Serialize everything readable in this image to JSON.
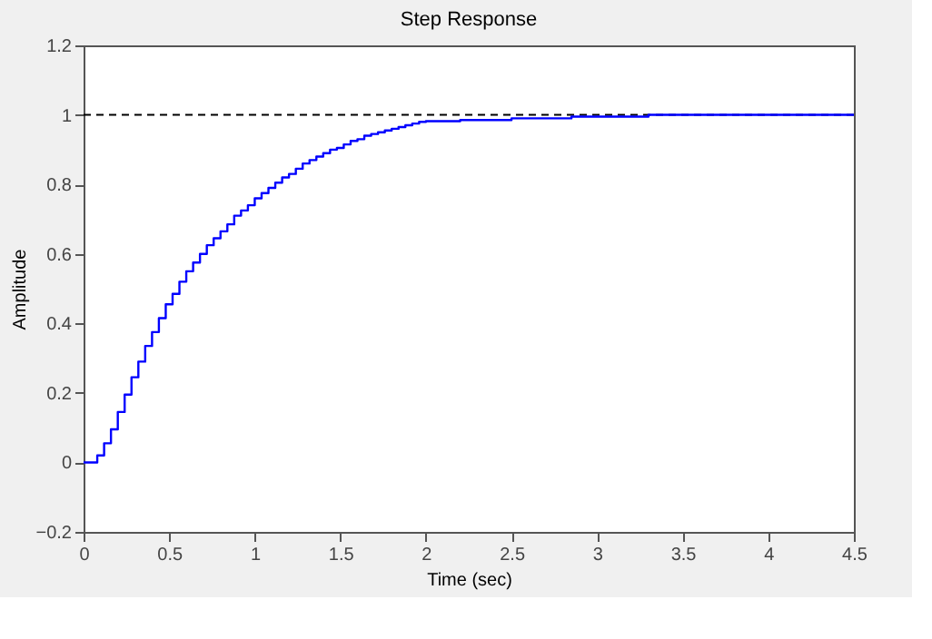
{
  "chart_data": {
    "type": "step",
    "title": "Step Response",
    "xlabel": "Time (sec)",
    "ylabel": "Amplitude",
    "x": [
      0,
      0.04,
      0.08,
      0.12,
      0.16,
      0.2,
      0.24,
      0.28,
      0.32,
      0.36,
      0.4,
      0.44,
      0.48,
      0.52,
      0.56,
      0.6,
      0.64,
      0.68,
      0.72,
      0.76,
      0.8,
      0.84,
      0.88,
      0.92,
      0.96,
      1.0,
      1.04,
      1.08,
      1.12,
      1.16,
      1.2,
      1.24,
      1.28,
      1.32,
      1.36,
      1.4,
      1.44,
      1.48,
      1.52,
      1.56,
      1.6,
      1.64,
      1.68,
      1.72,
      1.76,
      1.8,
      1.84,
      1.88,
      1.92,
      1.96,
      2.0,
      2.2,
      2.5,
      2.85,
      3.3,
      4.5
    ],
    "series": [
      {
        "color": "#0000ff",
        "values": [
          0,
          0,
          0.02,
          0.055,
          0.095,
          0.145,
          0.195,
          0.245,
          0.29,
          0.335,
          0.375,
          0.415,
          0.455,
          0.485,
          0.52,
          0.55,
          0.575,
          0.6,
          0.625,
          0.645,
          0.665,
          0.685,
          0.71,
          0.725,
          0.74,
          0.76,
          0.775,
          0.79,
          0.805,
          0.82,
          0.83,
          0.845,
          0.86,
          0.87,
          0.88,
          0.89,
          0.9,
          0.905,
          0.915,
          0.925,
          0.93,
          0.94,
          0.945,
          0.95,
          0.955,
          0.96,
          0.965,
          0.97,
          0.975,
          0.98,
          0.982,
          0.985,
          0.99,
          0.995,
          1.0,
          1.0
        ]
      }
    ],
    "xlim": [
      0,
      4.5
    ],
    "xticks": [
      0,
      0.5,
      1,
      1.5,
      2,
      2.5,
      3,
      3.5,
      4,
      4.5
    ],
    "ylim": [
      -0.2,
      1.2
    ],
    "yticks": [
      -0.2,
      0,
      0.2,
      0.4,
      0.6,
      0.8,
      1,
      1.2
    ],
    "ref_lines": [
      {
        "axis": "y",
        "value": 1,
        "color": "#000000",
        "line_style": "dashed"
      }
    ],
    "grid": false,
    "marker": "none",
    "line_style": "solid"
  }
}
